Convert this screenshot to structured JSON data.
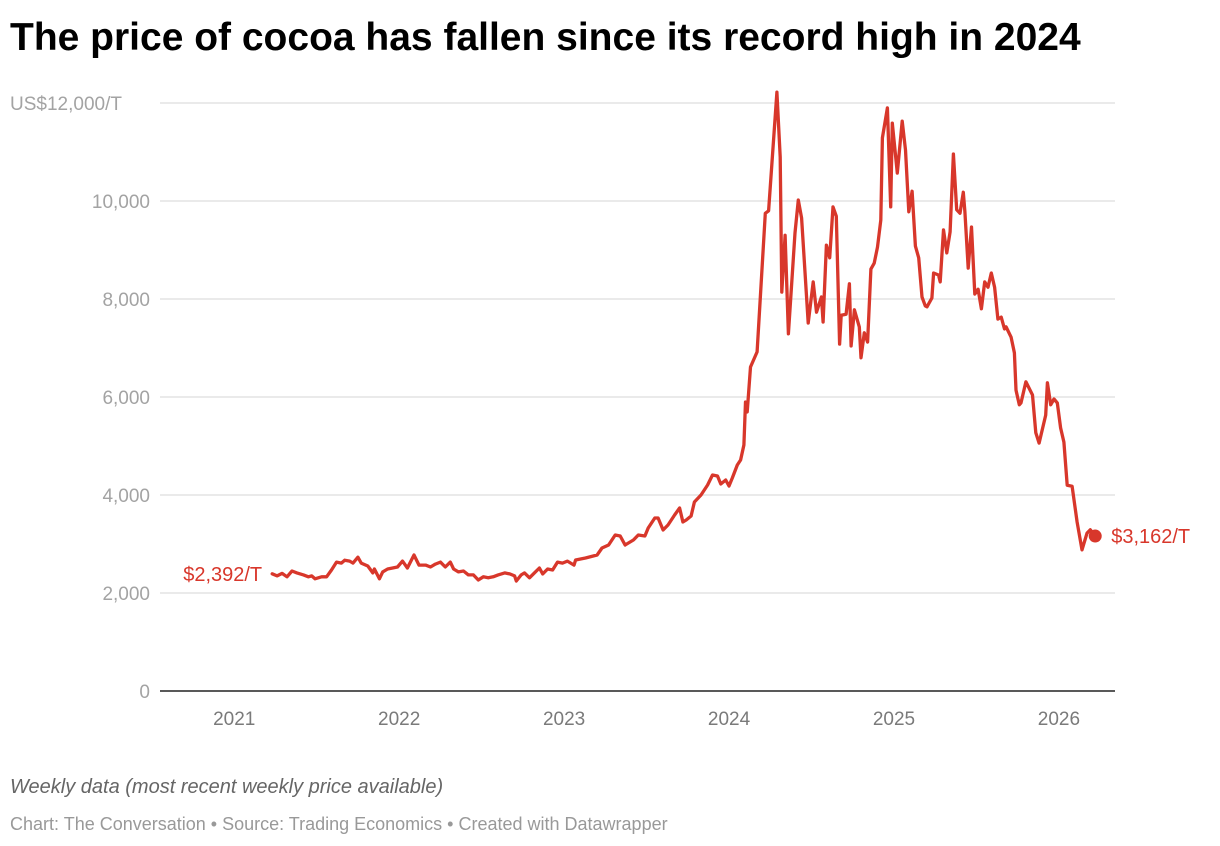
{
  "chart_data": {
    "type": "line",
    "title": "The price of cocoa has fallen since its record high in 2024",
    "note": "Weekly data (most recent weekly price available)",
    "source": "Chart: The Conversation • Source: Trading Economics • Created with Datawrapper",
    "xlabel": "",
    "ylabel": "US$/T",
    "ylim": [
      0,
      12000
    ],
    "xlim": [
      2020.55,
      2026.34
    ],
    "grid": true,
    "y_ticks": [
      {
        "value": 0,
        "label": "0"
      },
      {
        "value": 2000,
        "label": "2,000"
      },
      {
        "value": 4000,
        "label": "4,000"
      },
      {
        "value": 6000,
        "label": "6,000"
      },
      {
        "value": 8000,
        "label": "8,000"
      },
      {
        "value": 10000,
        "label": "10,000"
      },
      {
        "value": 12000,
        "label": "US$12,000/T"
      }
    ],
    "x_ticks": [
      {
        "value": 2021,
        "label": "2021"
      },
      {
        "value": 2022,
        "label": "2022"
      },
      {
        "value": 2023,
        "label": "2023"
      },
      {
        "value": 2024,
        "label": "2024"
      },
      {
        "value": 2025,
        "label": "2025"
      },
      {
        "value": 2026,
        "label": "2026"
      }
    ],
    "color": "#d8372b",
    "start_label": "$2,392/T",
    "end_label": "$3,162/T",
    "series": [
      {
        "name": "Cocoa price",
        "points": [
          [
            2021.23,
            2392
          ],
          [
            2021.26,
            2350
          ],
          [
            2021.29,
            2400
          ],
          [
            2021.32,
            2330
          ],
          [
            2021.35,
            2450
          ],
          [
            2021.38,
            2410
          ],
          [
            2021.42,
            2370
          ],
          [
            2021.45,
            2330
          ],
          [
            2021.47,
            2350
          ],
          [
            2021.49,
            2290
          ],
          [
            2021.53,
            2330
          ],
          [
            2021.56,
            2330
          ],
          [
            2021.59,
            2470
          ],
          [
            2021.62,
            2630
          ],
          [
            2021.65,
            2610
          ],
          [
            2021.67,
            2670
          ],
          [
            2021.7,
            2650
          ],
          [
            2021.72,
            2610
          ],
          [
            2021.75,
            2730
          ],
          [
            2021.77,
            2610
          ],
          [
            2021.81,
            2550
          ],
          [
            2021.84,
            2410
          ],
          [
            2021.85,
            2490
          ],
          [
            2021.88,
            2290
          ],
          [
            2021.9,
            2430
          ],
          [
            2021.93,
            2490
          ],
          [
            2021.96,
            2510
          ],
          [
            2021.99,
            2530
          ],
          [
            2022.02,
            2650
          ],
          [
            2022.05,
            2510
          ],
          [
            2022.09,
            2775
          ],
          [
            2022.12,
            2570
          ],
          [
            2022.16,
            2570
          ],
          [
            2022.19,
            2530
          ],
          [
            2022.22,
            2590
          ],
          [
            2022.25,
            2630
          ],
          [
            2022.28,
            2530
          ],
          [
            2022.31,
            2630
          ],
          [
            2022.33,
            2490
          ],
          [
            2022.36,
            2430
          ],
          [
            2022.39,
            2450
          ],
          [
            2022.42,
            2370
          ],
          [
            2022.45,
            2370
          ],
          [
            2022.48,
            2265
          ],
          [
            2022.51,
            2330
          ],
          [
            2022.54,
            2310
          ],
          [
            2022.57,
            2330
          ],
          [
            2022.6,
            2370
          ],
          [
            2022.64,
            2410
          ],
          [
            2022.67,
            2390
          ],
          [
            2022.7,
            2350
          ],
          [
            2022.71,
            2245
          ],
          [
            2022.74,
            2370
          ],
          [
            2022.76,
            2410
          ],
          [
            2022.79,
            2310
          ],
          [
            2022.82,
            2410
          ],
          [
            2022.85,
            2510
          ],
          [
            2022.87,
            2390
          ],
          [
            2022.9,
            2490
          ],
          [
            2022.93,
            2470
          ],
          [
            2022.96,
            2630
          ],
          [
            2022.99,
            2610
          ],
          [
            2023.02,
            2650
          ],
          [
            2023.06,
            2570
          ],
          [
            2023.07,
            2674
          ],
          [
            2023.13,
            2714
          ],
          [
            2023.2,
            2776
          ],
          [
            2023.23,
            2918
          ],
          [
            2023.27,
            2980
          ],
          [
            2023.31,
            3184
          ],
          [
            2023.34,
            3163
          ],
          [
            2023.37,
            2980
          ],
          [
            2023.42,
            3082
          ],
          [
            2023.45,
            3184
          ],
          [
            2023.49,
            3163
          ],
          [
            2023.51,
            3327
          ],
          [
            2023.55,
            3531
          ],
          [
            2023.57,
            3531
          ],
          [
            2023.6,
            3286
          ],
          [
            2023.63,
            3388
          ],
          [
            2023.67,
            3592
          ],
          [
            2023.7,
            3735
          ],
          [
            2023.72,
            3449
          ],
          [
            2023.74,
            3490
          ],
          [
            2023.77,
            3572
          ],
          [
            2023.79,
            3857
          ],
          [
            2023.83,
            4000
          ],
          [
            2023.87,
            4204
          ],
          [
            2023.9,
            4408
          ],
          [
            2023.93,
            4388
          ],
          [
            2023.95,
            4224
          ],
          [
            2023.98,
            4306
          ],
          [
            2024.0,
            4184
          ],
          [
            2024.02,
            4347
          ],
          [
            2024.05,
            4612
          ],
          [
            2024.07,
            4714
          ],
          [
            2024.09,
            5020
          ],
          [
            2024.1,
            5898
          ],
          [
            2024.11,
            5694
          ],
          [
            2024.13,
            6612
          ],
          [
            2024.17,
            6920
          ],
          [
            2024.22,
            9750
          ],
          [
            2024.24,
            9800
          ],
          [
            2024.29,
            12220
          ],
          [
            2024.31,
            10900
          ],
          [
            2024.32,
            8140
          ],
          [
            2024.34,
            9300
          ],
          [
            2024.36,
            7290
          ],
          [
            2024.4,
            9350
          ],
          [
            2024.42,
            10020
          ],
          [
            2024.44,
            9650
          ],
          [
            2024.48,
            7510
          ],
          [
            2024.51,
            8350
          ],
          [
            2024.53,
            7730
          ],
          [
            2024.56,
            8040
          ],
          [
            2024.57,
            7530
          ],
          [
            2024.59,
            9100
          ],
          [
            2024.61,
            8840
          ],
          [
            2024.63,
            9880
          ],
          [
            2024.65,
            9690
          ],
          [
            2024.67,
            7080
          ],
          [
            2024.68,
            7670
          ],
          [
            2024.71,
            7690
          ],
          [
            2024.73,
            8310
          ],
          [
            2024.74,
            7040
          ],
          [
            2024.76,
            7780
          ],
          [
            2024.79,
            7430
          ],
          [
            2024.8,
            6800
          ],
          [
            2024.82,
            7310
          ],
          [
            2024.84,
            7120
          ],
          [
            2024.86,
            8610
          ],
          [
            2024.88,
            8730
          ],
          [
            2024.9,
            9060
          ],
          [
            2024.92,
            9610
          ],
          [
            2024.93,
            11290
          ],
          [
            2024.96,
            11900
          ],
          [
            2024.98,
            9880
          ],
          [
            2024.99,
            11590
          ],
          [
            2025.02,
            10570
          ],
          [
            2025.05,
            11630
          ],
          [
            2025.07,
            11040
          ],
          [
            2025.09,
            9780
          ],
          [
            2025.11,
            10200
          ],
          [
            2025.13,
            9080
          ],
          [
            2025.15,
            8840
          ],
          [
            2025.17,
            8040
          ],
          [
            2025.19,
            7860
          ],
          [
            2025.2,
            7840
          ],
          [
            2025.23,
            8020
          ],
          [
            2025.24,
            8530
          ],
          [
            2025.27,
            8490
          ],
          [
            2025.28,
            8350
          ],
          [
            2025.3,
            9410
          ],
          [
            2025.32,
            8940
          ],
          [
            2025.34,
            9370
          ],
          [
            2025.36,
            10960
          ],
          [
            2025.38,
            9820
          ],
          [
            2025.4,
            9750
          ],
          [
            2025.42,
            10180
          ],
          [
            2025.43,
            9780
          ],
          [
            2025.45,
            8630
          ],
          [
            2025.47,
            9470
          ],
          [
            2025.49,
            8100
          ],
          [
            2025.51,
            8200
          ],
          [
            2025.53,
            7800
          ],
          [
            2025.55,
            8350
          ],
          [
            2025.57,
            8240
          ],
          [
            2025.59,
            8530
          ],
          [
            2025.61,
            8240
          ],
          [
            2025.63,
            7590
          ],
          [
            2025.65,
            7630
          ],
          [
            2025.67,
            7390
          ],
          [
            2025.68,
            7430
          ],
          [
            2025.71,
            7220
          ],
          [
            2025.73,
            6900
          ],
          [
            2025.74,
            6140
          ],
          [
            2025.76,
            5840
          ],
          [
            2025.77,
            5880
          ],
          [
            2025.8,
            6310
          ],
          [
            2025.84,
            6040
          ],
          [
            2025.86,
            5270
          ],
          [
            2025.88,
            5060
          ],
          [
            2025.92,
            5630
          ],
          [
            2025.93,
            6290
          ],
          [
            2025.95,
            5840
          ],
          [
            2025.97,
            5960
          ],
          [
            2025.99,
            5880
          ],
          [
            2026.01,
            5370
          ],
          [
            2026.03,
            5080
          ],
          [
            2026.05,
            4200
          ],
          [
            2026.08,
            4180
          ],
          [
            2026.11,
            3450
          ],
          [
            2026.14,
            2880
          ],
          [
            2026.17,
            3220
          ],
          [
            2026.19,
            3290
          ],
          [
            2026.22,
            3162
          ]
        ]
      }
    ]
  }
}
